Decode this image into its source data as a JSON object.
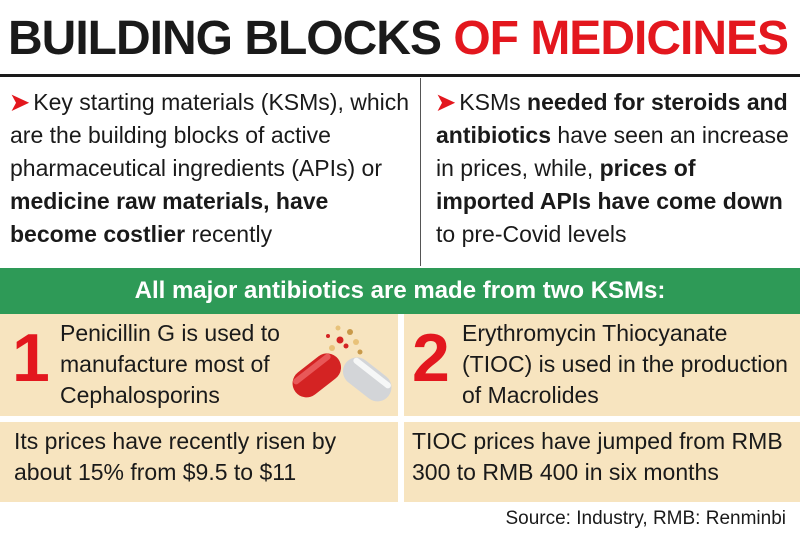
{
  "title": {
    "part1": "BUILDING BLOCKS ",
    "part2": "OF MEDICINES"
  },
  "colors": {
    "accent_red": "#e3171e",
    "banner_green": "#2e9a57",
    "panel_beige": "#f7e4bf"
  },
  "left_point": {
    "marker": "➤",
    "t1": "Key starting materials (KSMs), which are the building blocks of active pharmaceutical ingredients (APIs) or ",
    "b1": "medicine raw materials, have become costlier",
    "t2": " recently"
  },
  "right_point": {
    "marker": "➤",
    "t1": "KSMs ",
    "b1": "needed for steroids and antibiotics",
    "t2": " have seen an increase in prices, while, ",
    "b2": "prices of imported APIs have come down",
    "t3": " to pre-Covid levels"
  },
  "banner": "All major antibiotics are made from two KSMs:",
  "ksm1": {
    "number": "1",
    "description": "Penicillin G is used to manufacture most of Cephalosporins",
    "price_note": "Its prices have recently risen by about 15% from $9.5 to $11"
  },
  "ksm2": {
    "number": "2",
    "description": "Erythromycin Thiocyanate (TIOC) is used in the production of Macrolides",
    "price_note": "TIOC prices have jumped from RMB 300 to RMB 400 in six months"
  },
  "illustration": "capsule-icon",
  "source": "Source: Industry, RMB: Renminbi"
}
